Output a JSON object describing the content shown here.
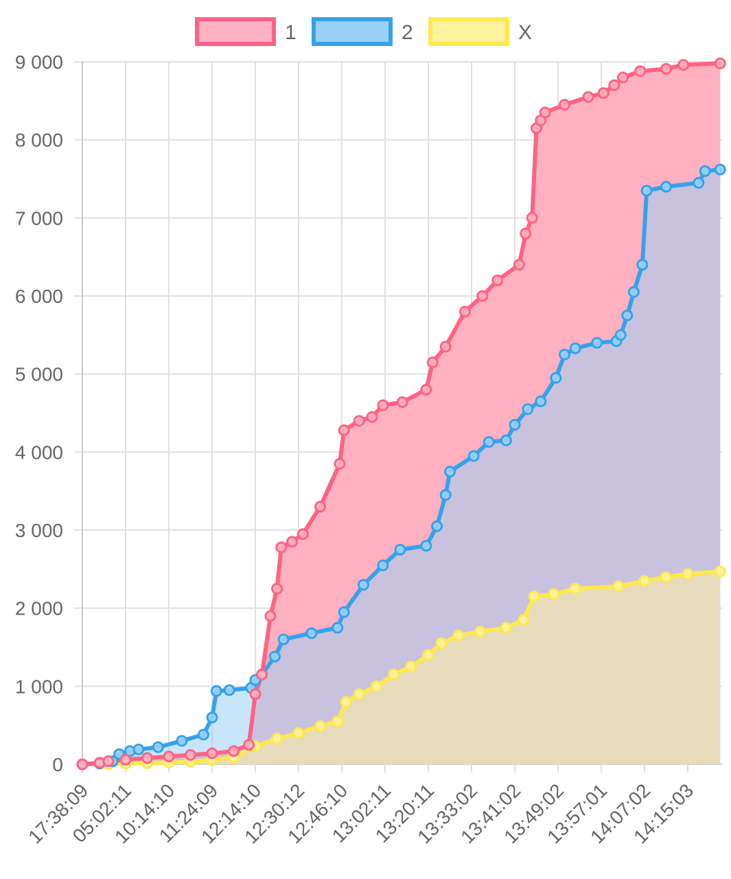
{
  "chart_data": {
    "type": "area",
    "title": "",
    "xlabel": "",
    "ylabel": "",
    "ylim": [
      0,
      9000
    ],
    "yticks": [
      0,
      1000,
      2000,
      3000,
      4000,
      5000,
      6000,
      7000,
      8000,
      9000
    ],
    "ytick_labels": [
      "0",
      "1 000",
      "2 000",
      "3 000",
      "4 000",
      "5 000",
      "6 000",
      "7 000",
      "8 000",
      "9 000"
    ],
    "x": [
      "17:38:09",
      "05:02:11",
      "10:14:10",
      "11:24:09",
      "12:14:10",
      "12:30:12",
      "12:46:10",
      "13:02:11",
      "13:20:11",
      "13:33:02",
      "13:41:02",
      "13:49:02",
      "13:57:01",
      "14:07:02",
      "14:15:03"
    ],
    "x_end": 14.75,
    "grid": true,
    "legend_position": "top-center",
    "series": [
      {
        "name": "1",
        "line_color": "#ff6384",
        "fill_color": "#ffb1c1",
        "points": [
          [
            0,
            0
          ],
          [
            0.4,
            20
          ],
          [
            0.6,
            40
          ],
          [
            1,
            60
          ],
          [
            1.5,
            80
          ],
          [
            2,
            100
          ],
          [
            2.5,
            120
          ],
          [
            3,
            140
          ],
          [
            3.5,
            170
          ],
          [
            3.85,
            250
          ],
          [
            4,
            900
          ],
          [
            4.15,
            1150
          ],
          [
            4.35,
            1900
          ],
          [
            4.5,
            2250
          ],
          [
            4.6,
            2780
          ],
          [
            4.85,
            2850
          ],
          [
            5.1,
            2950
          ],
          [
            5.5,
            3300
          ],
          [
            5.95,
            3850
          ],
          [
            6.05,
            4280
          ],
          [
            6.4,
            4400
          ],
          [
            6.7,
            4450
          ],
          [
            6.95,
            4600
          ],
          [
            7.4,
            4640
          ],
          [
            7.95,
            4800
          ],
          [
            8.1,
            5150
          ],
          [
            8.4,
            5350
          ],
          [
            8.85,
            5800
          ],
          [
            9.25,
            6000
          ],
          [
            9.6,
            6200
          ],
          [
            10.1,
            6400
          ],
          [
            10.25,
            6800
          ],
          [
            10.4,
            7000
          ],
          [
            10.5,
            8150
          ],
          [
            10.6,
            8250
          ],
          [
            10.7,
            8350
          ],
          [
            11.15,
            8450
          ],
          [
            11.7,
            8550
          ],
          [
            12.05,
            8600
          ],
          [
            12.3,
            8700
          ],
          [
            12.5,
            8800
          ],
          [
            12.9,
            8880
          ],
          [
            13.5,
            8910
          ],
          [
            13.9,
            8960
          ],
          [
            14.75,
            8980
          ]
        ]
      },
      {
        "name": "2",
        "line_color": "#36a2eb",
        "fill_color": "#9ad0f5",
        "points": [
          [
            0,
            0
          ],
          [
            0.4,
            10
          ],
          [
            0.7,
            40
          ],
          [
            0.85,
            130
          ],
          [
            1.1,
            170
          ],
          [
            1.3,
            190
          ],
          [
            1.75,
            220
          ],
          [
            2.3,
            300
          ],
          [
            2.8,
            380
          ],
          [
            3,
            600
          ],
          [
            3.1,
            940
          ],
          [
            3.4,
            950
          ],
          [
            3.9,
            980
          ],
          [
            4,
            1080
          ],
          [
            4.15,
            1150
          ],
          [
            4.45,
            1380
          ],
          [
            4.65,
            1600
          ],
          [
            5.3,
            1680
          ],
          [
            5.9,
            1750
          ],
          [
            6.05,
            1950
          ],
          [
            6.5,
            2300
          ],
          [
            6.95,
            2550
          ],
          [
            7.35,
            2750
          ],
          [
            7.95,
            2800
          ],
          [
            8.2,
            3050
          ],
          [
            8.4,
            3450
          ],
          [
            8.5,
            3750
          ],
          [
            9.05,
            3950
          ],
          [
            9.4,
            4130
          ],
          [
            9.8,
            4150
          ],
          [
            10.0,
            4350
          ],
          [
            10.3,
            4550
          ],
          [
            10.6,
            4650
          ],
          [
            10.95,
            4950
          ],
          [
            11.15,
            5250
          ],
          [
            11.4,
            5330
          ],
          [
            11.9,
            5400
          ],
          [
            12.35,
            5420
          ],
          [
            12.45,
            5500
          ],
          [
            12.6,
            5750
          ],
          [
            12.75,
            6050
          ],
          [
            12.95,
            6400
          ],
          [
            13.05,
            7350
          ],
          [
            13.5,
            7400
          ],
          [
            14.25,
            7450
          ],
          [
            14.4,
            7600
          ],
          [
            14.75,
            7620
          ]
        ]
      },
      {
        "name": "X",
        "line_color": "#ffe94d",
        "fill_color": "#fff3a0",
        "points": [
          [
            0,
            0
          ],
          [
            0.6,
            0
          ],
          [
            1,
            10
          ],
          [
            1.5,
            15
          ],
          [
            2,
            25
          ],
          [
            2.5,
            35
          ],
          [
            3,
            55
          ],
          [
            3.5,
            90
          ],
          [
            4,
            230
          ],
          [
            4.5,
            330
          ],
          [
            5,
            400
          ],
          [
            5.5,
            490
          ],
          [
            5.9,
            550
          ],
          [
            6.1,
            800
          ],
          [
            6.4,
            900
          ],
          [
            6.8,
            1000
          ],
          [
            7.2,
            1150
          ],
          [
            7.6,
            1250
          ],
          [
            8.0,
            1400
          ],
          [
            8.3,
            1550
          ],
          [
            8.7,
            1650
          ],
          [
            9.2,
            1700
          ],
          [
            9.8,
            1750
          ],
          [
            10.2,
            1850
          ],
          [
            10.45,
            2150
          ],
          [
            10.9,
            2180
          ],
          [
            11.4,
            2250
          ],
          [
            12.4,
            2280
          ],
          [
            13.0,
            2350
          ],
          [
            13.5,
            2400
          ],
          [
            14.0,
            2440
          ],
          [
            14.75,
            2470
          ]
        ]
      }
    ]
  }
}
